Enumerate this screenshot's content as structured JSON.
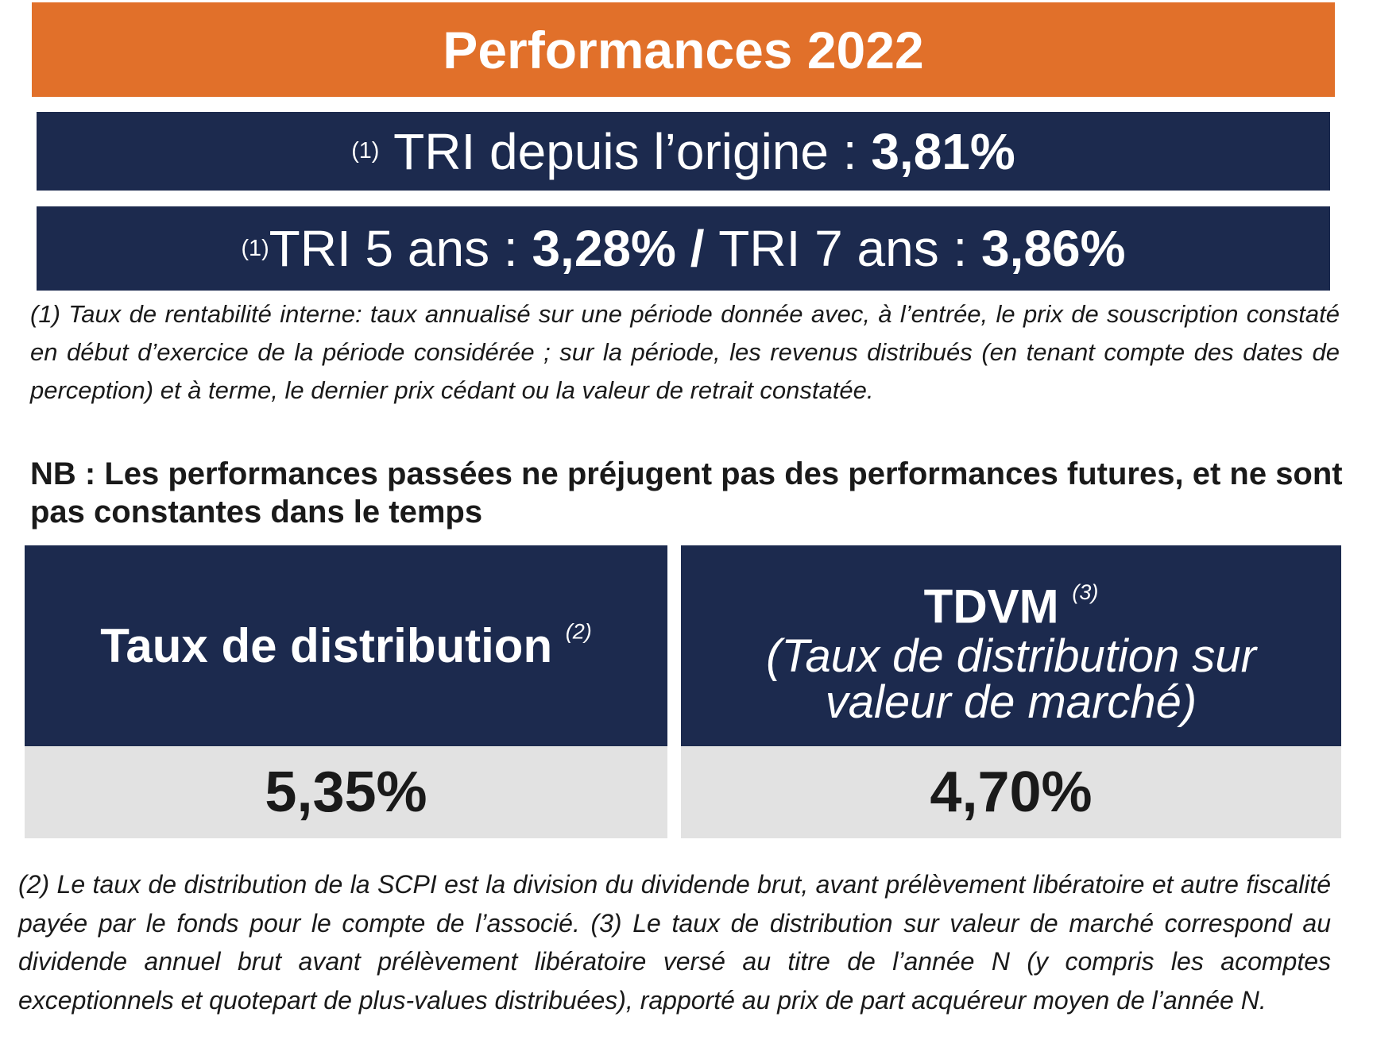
{
  "title": "Performances 2022",
  "tri_origin": {
    "note": "(1)",
    "label": "TRI depuis l’origine :",
    "value": "3,81%"
  },
  "tri_periods": {
    "note": "(1)",
    "label_5": "TRI 5 ans :",
    "value_5": "3,28%",
    "separator": "/",
    "label_7": "TRI 7 ans :",
    "value_7": "3,86%"
  },
  "footnote_1": "(1) Taux de rentabilité interne: taux annualisé sur une période donnée avec, à l’entrée, le prix de souscription constaté en début d’exercice de la période considérée ; sur la période, les revenus distribués (en tenant compte des dates de perception) et à terme, le dernier prix cédant ou la valeur de retrait constatée.",
  "nb": "NB : Les performances passées ne préjugent pas des performances futures, et ne sont pas constantes dans le temps",
  "cards": [
    {
      "title": "Taux de distribution",
      "note": "(2)",
      "value": "5,35%"
    },
    {
      "title": "TDVM",
      "note": "(3)",
      "subtitle": "(Taux de distribution sur valeur de marché)",
      "value": "4,70%"
    }
  ],
  "footnote_2_3": "(2) Le taux de distribution de la SCPI est la division du dividende brut, avant prélèvement libératoire et autre fiscalité payée par le fonds pour le compte de l’associé. (3) Le taux de distribution sur valeur de marché correspond au dividende annuel brut avant prélèvement libératoire versé au titre de l’année N (y compris les acomptes exceptionnels et quotepart de plus-values distribuées), rapporté au prix de part acquéreur moyen de l’année N."
}
